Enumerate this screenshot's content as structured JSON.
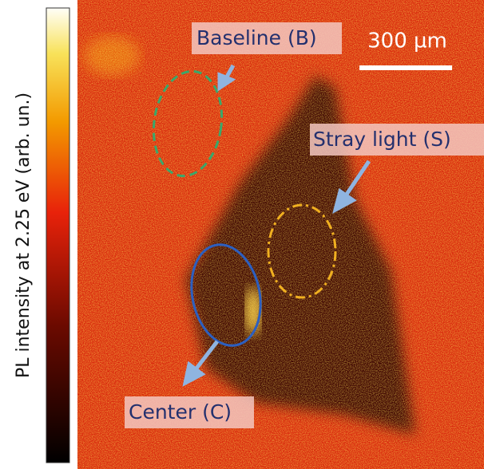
{
  "colorbar": {
    "label": "PL intensity at 2.25 eV (arb. un.)"
  },
  "image": {
    "scale_bar": "300 µm",
    "annotations": [
      "Baseline (B)",
      "Stray light (S)",
      "Center (C)"
    ]
  }
}
